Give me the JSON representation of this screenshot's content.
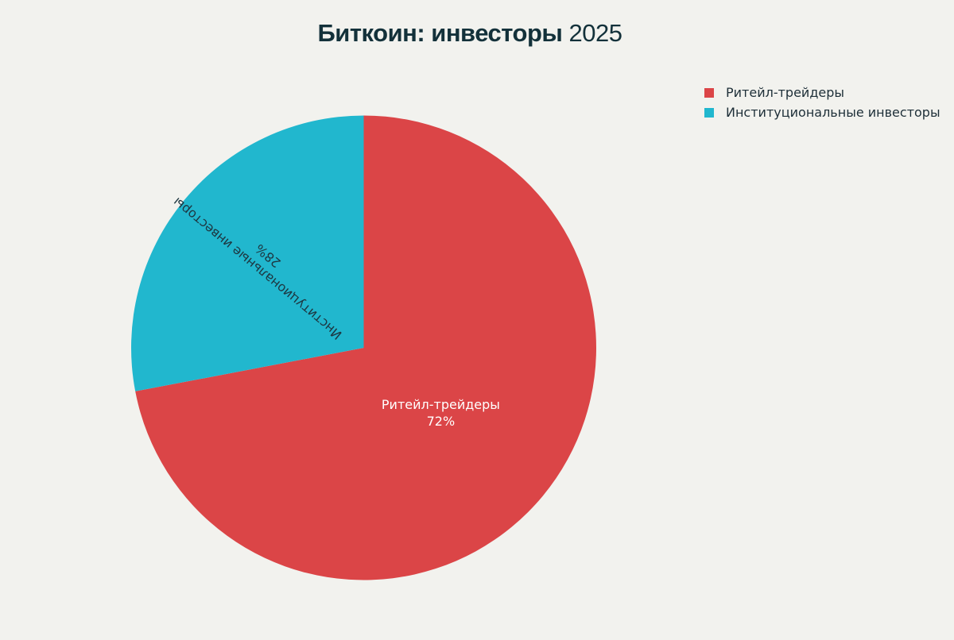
{
  "chart_data": {
    "type": "pie",
    "title_bold": "Биткоин: инвесторы",
    "title_rest": "2025",
    "categories": [
      "Ритейл-трейдеры",
      "Институциональные инвесторы"
    ],
    "values": [
      72,
      28
    ],
    "value_labels": [
      "72%",
      "28%"
    ],
    "colors": [
      "#db4547",
      "#21b7ce"
    ],
    "label_colors": [
      "#ffffff",
      "#1e3640"
    ],
    "start_angle_deg": 0,
    "direction": "clockwise",
    "legend_position": "top-right"
  }
}
